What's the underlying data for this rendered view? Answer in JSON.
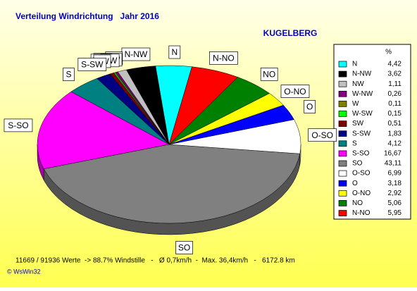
{
  "chart_data": {
    "type": "pie",
    "title": "Verteilung Windrichtung   Jahr 2016",
    "subtitle": "KUGELBERG",
    "legend_header": "%",
    "footer": "11669 / 91936 Werte  -> 88.7% Windstille   -   Ø 0,7km/h  -  Max. 36,4km/h   -   6172.8 km",
    "credit": "© WsWin32",
    "categories": [
      "N",
      "N-NW",
      "NW",
      "W-NW",
      "W",
      "W-SW",
      "SW",
      "S-SW",
      "S",
      "S-SO",
      "SO",
      "O-SO",
      "O",
      "O-NO",
      "NO",
      "N-NO"
    ],
    "values": [
      4.42,
      3.62,
      1.11,
      0.26,
      0.11,
      0.15,
      0.51,
      1.83,
      4.12,
      16.67,
      43.11,
      6.99,
      3.18,
      2.92,
      5.06,
      5.95
    ],
    "value_labels": [
      "4,42",
      "3,62",
      "1,11",
      "0,26",
      "0,11",
      "0,15",
      "0,51",
      "1,83",
      "4,12",
      "16,67",
      "43,11",
      "6,99",
      "3,18",
      "2,92",
      "5,06",
      "5,95"
    ],
    "colors": [
      "#00ffff",
      "#000000",
      "#c0c0c0",
      "#800080",
      "#808000",
      "#00ff00",
      "#800000",
      "#000080",
      "#008080",
      "#ff00ff",
      "#808080",
      "#ffffff",
      "#0000ff",
      "#ffff00",
      "#008000",
      "#ff0000"
    ],
    "legend": "right"
  }
}
